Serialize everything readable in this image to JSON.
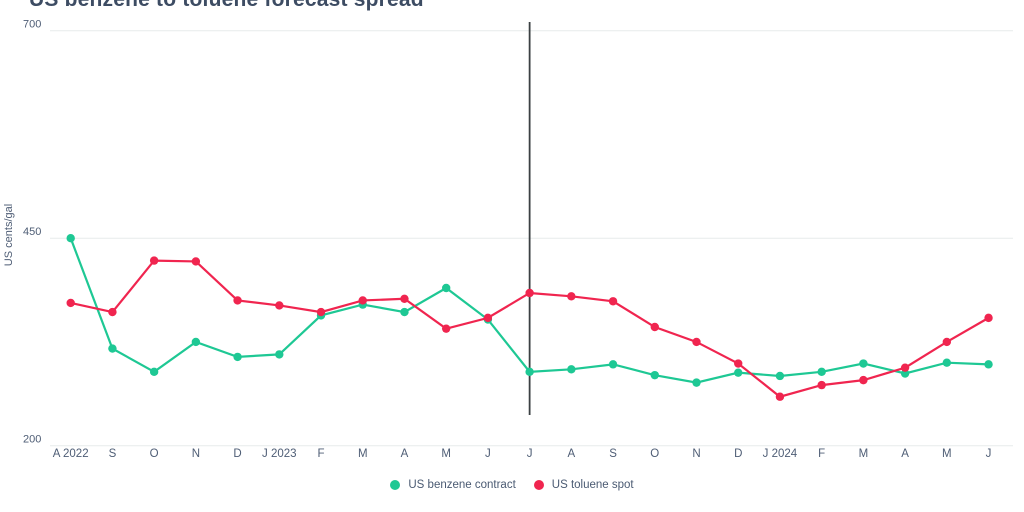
{
  "chart": {
    "title": "US benzene to toluene forecast spread"
  },
  "chart_data": {
    "type": "line",
    "title": "US benzene to toluene forecast spread",
    "xlabel": "",
    "ylabel": "US cents/gal",
    "ylim": [
      200,
      700
    ],
    "yticks": [
      200,
      450,
      700
    ],
    "grid": "horizontal-only",
    "legend_position": "bottom",
    "x": [
      "A 2022",
      "S",
      "O",
      "N",
      "D",
      "J 2023",
      "F",
      "M",
      "A",
      "M",
      "J",
      "J",
      "A",
      "S",
      "O",
      "N",
      "D",
      "J 2024",
      "F",
      "M",
      "A",
      "M",
      "J"
    ],
    "series": [
      {
        "name": "US benzene contract",
        "color": "#1ec894",
        "values": [
          450,
          317,
          289,
          325,
          307,
          310,
          357,
          370,
          361,
          390,
          352,
          289,
          292,
          298,
          285,
          276,
          288,
          284,
          289,
          299,
          287,
          300,
          298
        ]
      },
      {
        "name": "US toluene spot",
        "color": "#f0254f",
        "values": [
          372,
          361,
          423,
          422,
          375,
          369,
          361,
          375,
          377,
          341,
          354,
          384,
          380,
          374,
          343,
          325,
          299,
          259,
          273,
          279,
          294,
          325,
          354
        ]
      }
    ],
    "annotations": {
      "forecast_divider_x_index": 11,
      "forecast_divider_x_label": "J"
    }
  },
  "colors": {
    "title": "#3d4c63",
    "axis_text": "#4e5d75",
    "gridline": "#e7ebec",
    "divider": "#3b4043",
    "background": "#ffffff"
  }
}
